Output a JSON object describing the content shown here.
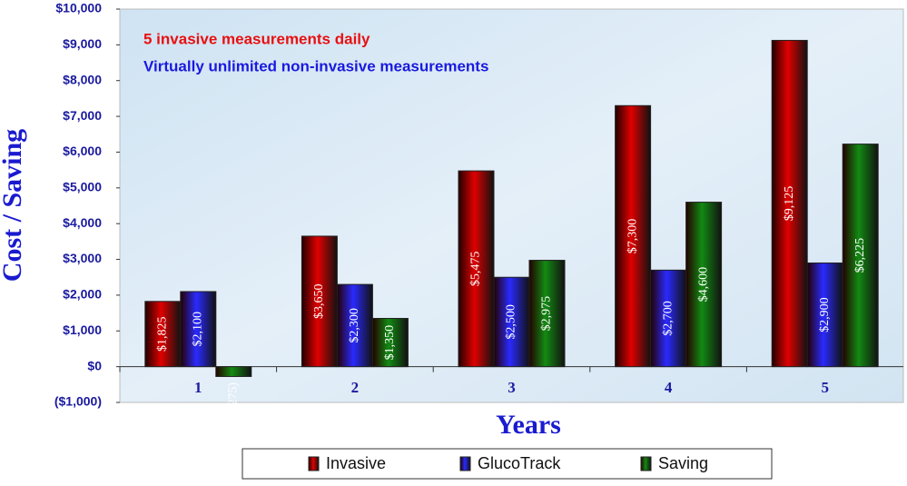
{
  "chart_data": {
    "type": "bar",
    "annotations": [
      {
        "text": "5 invasive measurements daily",
        "color": "#e81010"
      },
      {
        "text": "Virtually unlimited non-invasive measurements",
        "color": "#1a1ae0"
      }
    ],
    "x_label": "Years",
    "y_label": "Cost / Saving",
    "categories": [
      "1",
      "2",
      "3",
      "4",
      "5"
    ],
    "series": [
      {
        "name": "Invasive",
        "color": "#e00000",
        "values": [
          1825,
          3650,
          5475,
          7300,
          9125
        ],
        "value_labels": [
          "$1,825",
          "$3,650",
          "$5,475",
          "$7,300",
          "$9,125"
        ]
      },
      {
        "name": "GlucoTrack",
        "color": "#2a2aff",
        "values": [
          2100,
          2300,
          2500,
          2700,
          2900
        ],
        "value_labels": [
          "$2,100",
          "$2,300",
          "$2,500",
          "$2,700",
          "$2,900"
        ]
      },
      {
        "name": "Saving",
        "color": "#138a13",
        "values": [
          -275,
          1350,
          2975,
          4600,
          6225
        ],
        "value_labels": [
          "($275)",
          "$1,350",
          "$2,975",
          "$4,600",
          "$6,225"
        ]
      }
    ],
    "ylim": [
      -1000,
      10000
    ],
    "yticks": [
      {
        "value": -1000,
        "label": "($1,000)"
      },
      {
        "value": 0,
        "label": "$0"
      },
      {
        "value": 1000,
        "label": "$1,000"
      },
      {
        "value": 2000,
        "label": "$2,000"
      },
      {
        "value": 3000,
        "label": "$3,000"
      },
      {
        "value": 4000,
        "label": "$4,000"
      },
      {
        "value": 5000,
        "label": "$5,000"
      },
      {
        "value": 6000,
        "label": "$6,000"
      },
      {
        "value": 7000,
        "label": "$7,000"
      },
      {
        "value": 8000,
        "label": "$8,000"
      },
      {
        "value": 9000,
        "label": "$9,000"
      },
      {
        "value": 10000,
        "label": "$10,000"
      }
    ],
    "legend": "bottom"
  }
}
